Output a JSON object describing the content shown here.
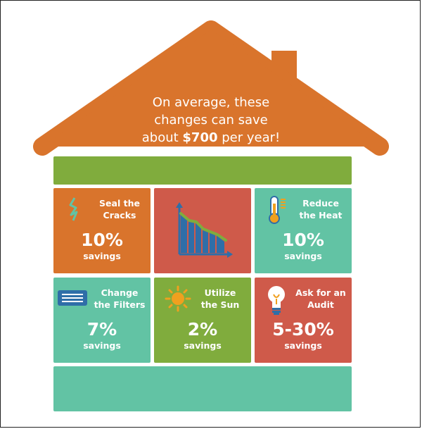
{
  "colors": {
    "orange": "#d9742c",
    "green": "#80ac3d",
    "teal": "#62c3a4",
    "red": "#cf5a4a",
    "chart_blue": "#2f6ea8"
  },
  "headline": {
    "line1": "On average, these",
    "line2": "changes can save",
    "line3_prefix": "about ",
    "line3_amount": "$700",
    "line3_suffix": " per year!"
  },
  "tiles": [
    {
      "title_line1": "Seal the",
      "title_line2": "Cracks",
      "percent": "10%",
      "savings": "savings",
      "icon": "crack-icon"
    },
    {
      "icon": "declining-chart-icon"
    },
    {
      "title_line1": "Reduce",
      "title_line2": "the Heat",
      "percent": "10%",
      "savings": "savings",
      "icon": "thermometer-icon"
    },
    {
      "title_line1": "Change",
      "title_line2": "the Filters",
      "percent": "7%",
      "savings": "savings",
      "icon": "filter-icon"
    },
    {
      "title_line1": "Utilize",
      "title_line2": "the Sun",
      "percent": "2%",
      "savings": "savings",
      "icon": "sun-icon"
    },
    {
      "title_line1": "Ask for an",
      "title_line2": "Audit",
      "percent": "5-30%",
      "savings": "savings",
      "icon": "lightbulb-icon"
    }
  ]
}
